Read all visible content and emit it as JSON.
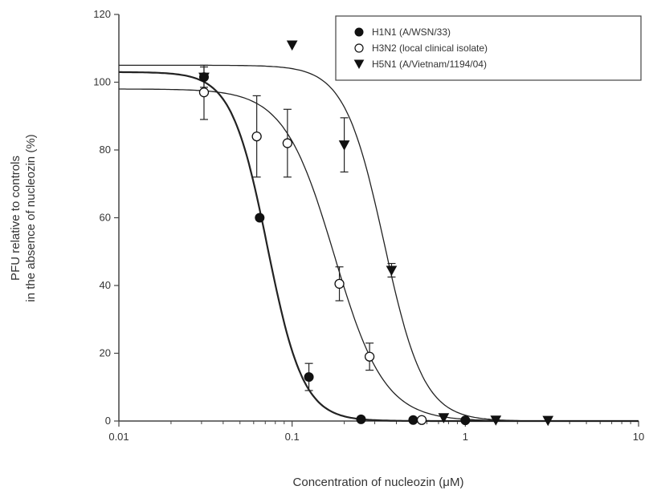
{
  "chart_data": {
    "type": "scatter",
    "xlabel": "Concentration of nucleozin (μM)",
    "ylabel_lines": [
      "PFU relative to controls",
      "in the absence of nucleozin (%)"
    ],
    "x_scale": "log",
    "xlim": [
      0.01,
      10
    ],
    "ylim": [
      0,
      120
    ],
    "x_ticks": [
      0.01,
      0.1,
      1,
      10
    ],
    "x_tick_labels": [
      "0.01",
      "0.1",
      "1",
      "10"
    ],
    "y_ticks": [
      0,
      20,
      40,
      60,
      80,
      100,
      120
    ],
    "y_tick_labels": [
      "0",
      "20",
      "40",
      "60",
      "80",
      "100",
      "120"
    ],
    "grid": false,
    "legend_position": "top-right",
    "series": [
      {
        "name": "H1N1 (A/WSN/33)",
        "marker": "filled-circle",
        "points": [
          {
            "x": 0.031,
            "y": 101.5,
            "err": 0
          },
          {
            "x": 0.065,
            "y": 60,
            "err": 0
          },
          {
            "x": 0.125,
            "y": 13,
            "err": 4
          },
          {
            "x": 0.25,
            "y": 0.5,
            "err": 0
          },
          {
            "x": 0.5,
            "y": 0.3,
            "err": 0
          },
          {
            "x": 1.0,
            "y": 0.2,
            "err": 0
          }
        ],
        "fit": {
          "top": 103,
          "bottom": 0,
          "ic50": 0.072,
          "hill": 4.2
        }
      },
      {
        "name": "H3N2 (local clinical isolate)",
        "marker": "open-circle",
        "points": [
          {
            "x": 0.031,
            "y": 97,
            "err": 8
          },
          {
            "x": 0.0625,
            "y": 84,
            "err": 12
          },
          {
            "x": 0.094,
            "y": 82,
            "err": 10
          },
          {
            "x": 0.1875,
            "y": 40.5,
            "err": 5
          },
          {
            "x": 0.28,
            "y": 19,
            "err": 4
          },
          {
            "x": 0.56,
            "y": 0.3,
            "err": 0
          }
        ],
        "fit": {
          "top": 98,
          "bottom": 0,
          "ic50": 0.175,
          "hill": 3.0
        }
      },
      {
        "name": "H5N1 (A/Vietnam/1194/04)",
        "marker": "filled-triangle-down",
        "points": [
          {
            "x": 0.031,
            "y": 101.5,
            "err": 3
          },
          {
            "x": 0.1,
            "y": 111,
            "err": 0
          },
          {
            "x": 0.2,
            "y": 81.5,
            "err": 8
          },
          {
            "x": 0.375,
            "y": 44.5,
            "err": 2
          },
          {
            "x": 0.75,
            "y": 1,
            "err": 0
          },
          {
            "x": 1.5,
            "y": 0.3,
            "err": 0
          },
          {
            "x": 3.0,
            "y": 0.2,
            "err": 0
          }
        ],
        "fit": {
          "top": 105,
          "bottom": 0,
          "ic50": 0.34,
          "hill": 3.8
        }
      }
    ]
  }
}
